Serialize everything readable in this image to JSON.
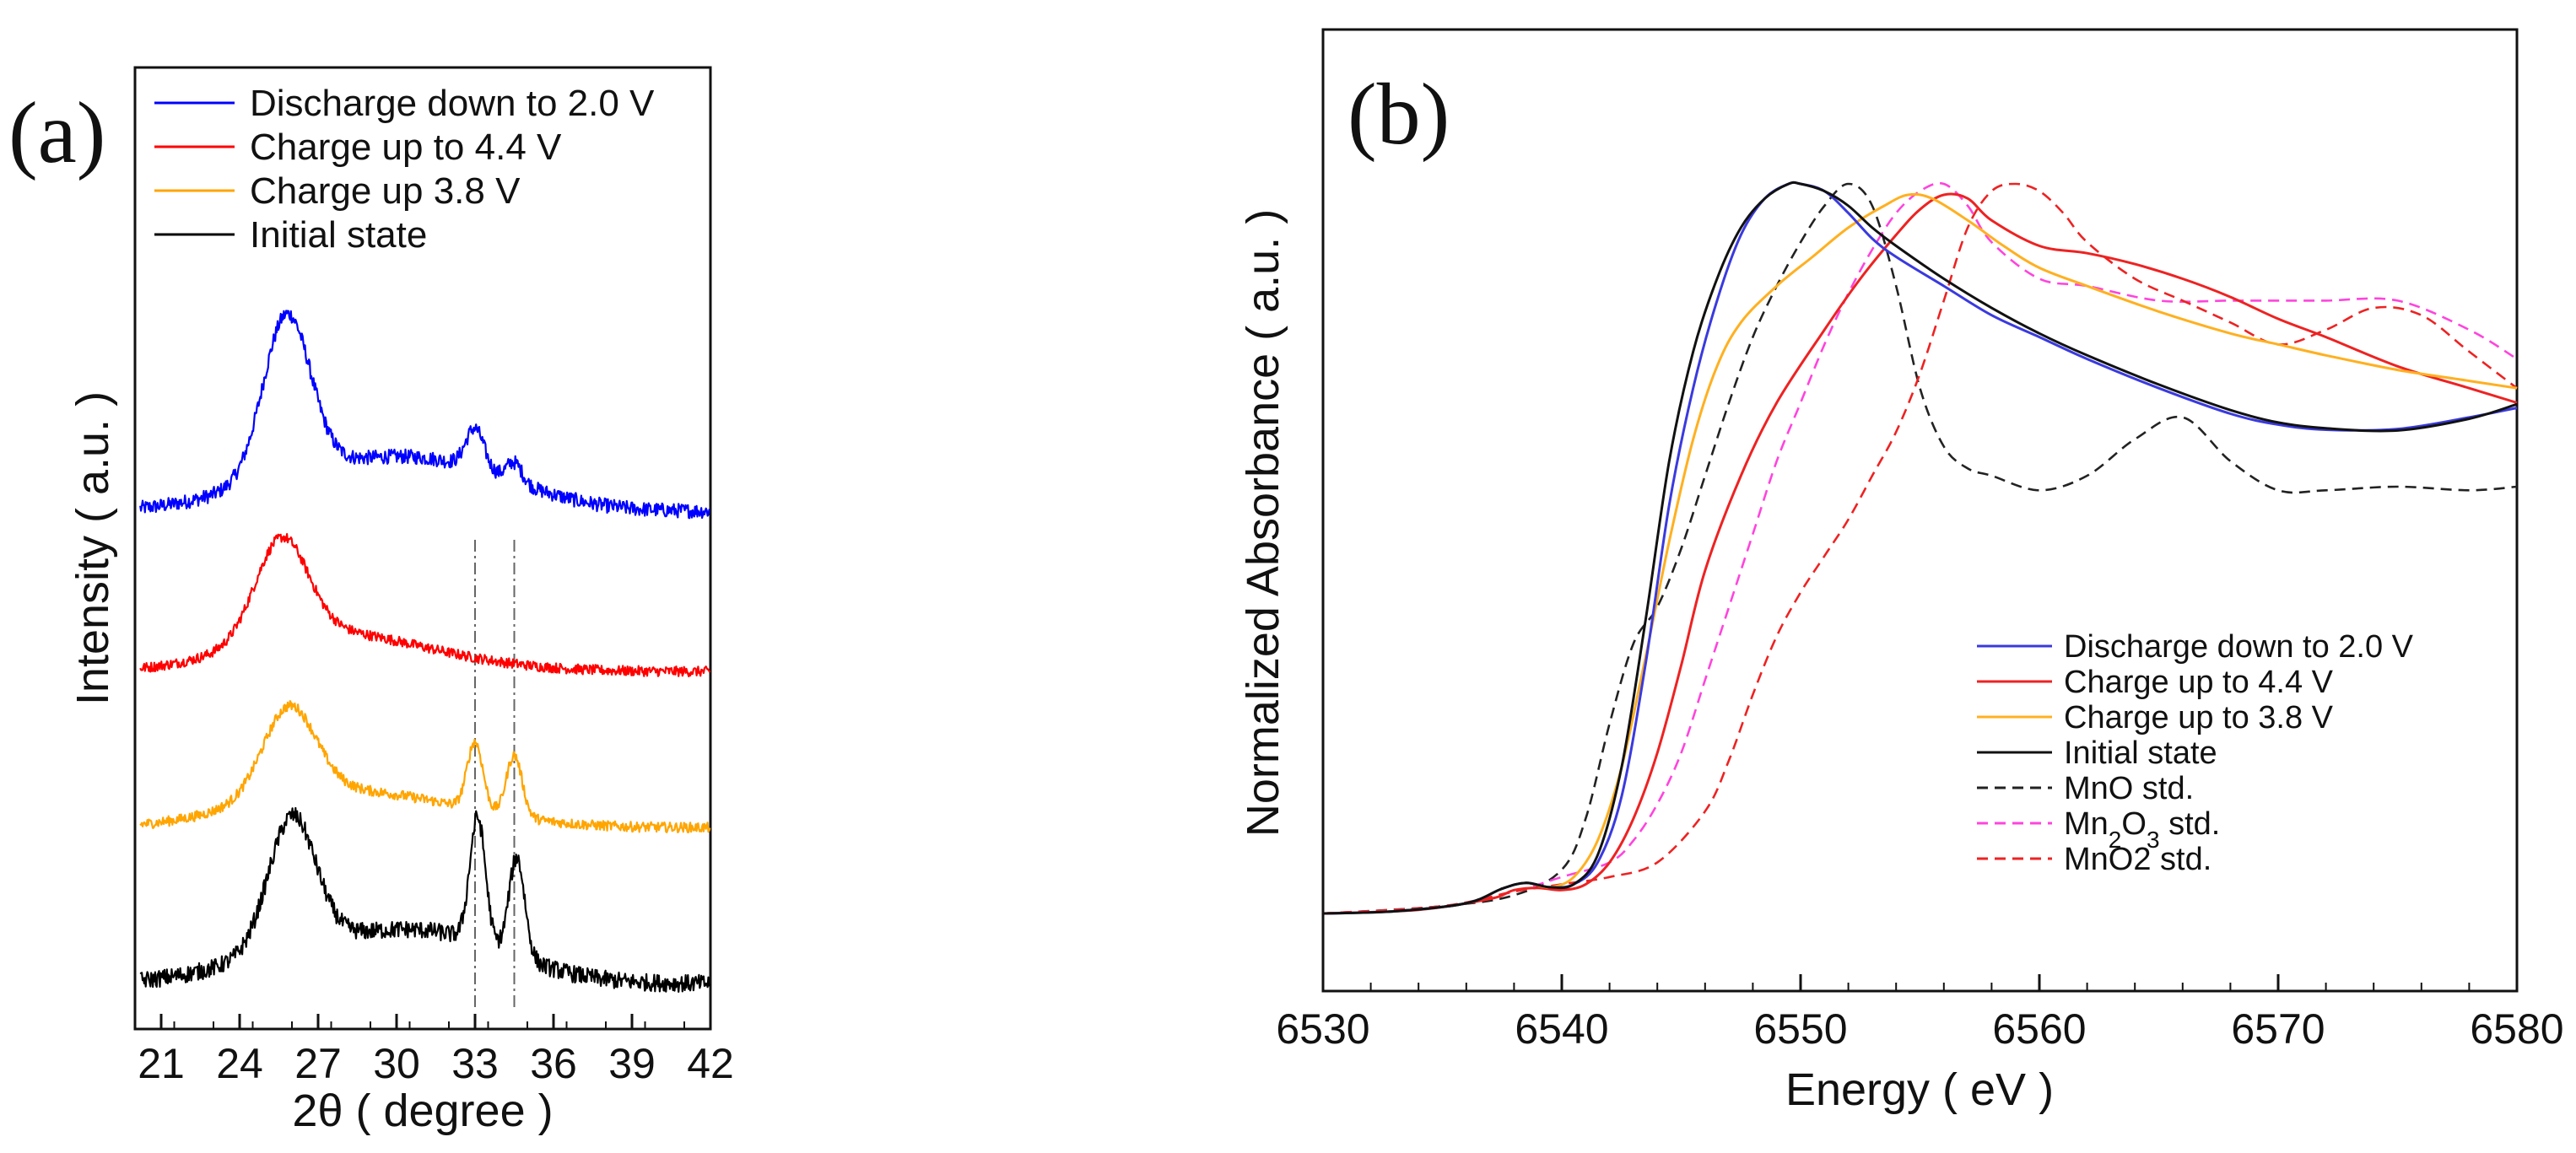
{
  "figure": {
    "panels": [
      "(a)",
      "(b)"
    ]
  },
  "chart_data": [
    {
      "type": "line",
      "panel_label": "(a)",
      "title": "",
      "xlabel": "2θ ( degree )",
      "ylabel": "Intensity ( a.u. )",
      "xlim": [
        20,
        42
      ],
      "xticks": [
        21,
        24,
        27,
        30,
        33,
        36,
        39,
        42
      ],
      "y_ticks_shown": false,
      "reference_lines_x": [
        33.0,
        34.5
      ],
      "legend_position": "top",
      "series": [
        {
          "name": "Discharge down to 2.0 V",
          "color": "#0000ff",
          "offset": 3,
          "noise": 1.0,
          "peaks": [
            [
              25.8,
              1.0,
              0.9
            ],
            [
              33.0,
              0.25,
              0.35
            ],
            [
              34.5,
              0.12,
              0.3
            ]
          ],
          "broad": [
            31.5,
            0.28,
            3.2
          ],
          "baseline": 0.02
        },
        {
          "name": "Charge up to 4.4 V",
          "color": "#ff0000",
          "offset": 2,
          "noise": 0.7,
          "peaks": [
            [
              25.6,
              0.62,
              1.0
            ]
          ],
          "broad": [
            30.0,
            0.1,
            3.5
          ],
          "baseline": 0.02
        },
        {
          "name": "Charge up 3.8 V",
          "color": "#ffa500",
          "offset": 1,
          "noise": 0.7,
          "peaks": [
            [
              25.9,
              0.55,
              1.0
            ],
            [
              33.0,
              0.42,
              0.3
            ],
            [
              34.5,
              0.38,
              0.3
            ]
          ],
          "broad": [
            31.0,
            0.12,
            3.2
          ],
          "baseline": 0.02
        },
        {
          "name": "Initial state",
          "color": "#000000",
          "offset": 0,
          "noise": 1.2,
          "peaks": [
            [
              26.0,
              0.82,
              0.9
            ],
            [
              33.1,
              0.78,
              0.3
            ],
            [
              34.6,
              0.62,
              0.3
            ]
          ],
          "broad": [
            31.5,
            0.28,
            3.0
          ],
          "baseline": 0.02
        }
      ]
    },
    {
      "type": "line",
      "panel_label": "(b)",
      "title": "",
      "xlabel": "Energy ( eV )",
      "ylabel": "Normalized Absorbance ( a.u. )",
      "xlim": [
        6530,
        6580
      ],
      "ylim": [
        0,
        1.1
      ],
      "xticks": [
        6530,
        6540,
        6550,
        6560,
        6570,
        6580
      ],
      "y_ticks_shown": false,
      "legend_position": "bottom-right",
      "series": [
        {
          "name": "Discharge down to 2.0 V",
          "color": "#3a3adf",
          "dash": false,
          "x": [
            6530,
            6533,
            6536,
            6537.5,
            6538.5,
            6539.5,
            6540.5,
            6541.5,
            6542.5,
            6543.5,
            6544.5,
            6545.5,
            6546.5,
            6547.5,
            6548.5,
            6549.5,
            6550,
            6551,
            6552,
            6553,
            6554,
            6556,
            6558,
            6560,
            6562,
            6565,
            6568,
            6570,
            6572,
            6575,
            6578,
            6580
          ],
          "y": [
            0.0,
            0.003,
            0.014,
            0.034,
            0.042,
            0.036,
            0.04,
            0.07,
            0.16,
            0.34,
            0.56,
            0.72,
            0.84,
            0.93,
            0.98,
            1.0,
            1.0,
            0.99,
            0.96,
            0.925,
            0.9,
            0.86,
            0.82,
            0.79,
            0.76,
            0.72,
            0.685,
            0.67,
            0.663,
            0.664,
            0.68,
            0.693
          ]
        },
        {
          "name": "Charge up to 4.4 V",
          "color": "#ee2222",
          "dash": false,
          "x": [
            6530,
            6534,
            6537,
            6538,
            6539,
            6540,
            6541,
            6542,
            6543,
            6544,
            6545,
            6546,
            6547.5,
            6549,
            6551,
            6552.5,
            6554,
            6555,
            6556,
            6557,
            6558,
            6560,
            6562,
            6564,
            6566,
            6568,
            6570,
            6572,
            6575,
            6578,
            6580
          ],
          "y": [
            0.0,
            0.005,
            0.02,
            0.032,
            0.035,
            0.032,
            0.04,
            0.07,
            0.13,
            0.22,
            0.34,
            0.47,
            0.6,
            0.7,
            0.8,
            0.87,
            0.93,
            0.965,
            0.985,
            0.98,
            0.95,
            0.915,
            0.905,
            0.89,
            0.87,
            0.845,
            0.815,
            0.79,
            0.75,
            0.72,
            0.7
          ]
        },
        {
          "name": "Charge up to 3.8 V",
          "color": "#ffb020",
          "dash": false,
          "x": [
            6530,
            6533,
            6536,
            6537.5,
            6538.5,
            6539.5,
            6540.5,
            6541.5,
            6542.5,
            6543.5,
            6544.5,
            6545.5,
            6546.5,
            6547.5,
            6549,
            6550.5,
            6552,
            6553.5,
            6554.5,
            6555.5,
            6557,
            6558.5,
            6560,
            6562,
            6565,
            6568,
            6570,
            6572,
            6575,
            6578,
            6580
          ],
          "y": [
            0.0,
            0.003,
            0.014,
            0.034,
            0.042,
            0.036,
            0.05,
            0.1,
            0.2,
            0.35,
            0.51,
            0.65,
            0.75,
            0.81,
            0.86,
            0.9,
            0.94,
            0.97,
            0.985,
            0.98,
            0.95,
            0.915,
            0.885,
            0.86,
            0.825,
            0.795,
            0.78,
            0.765,
            0.745,
            0.73,
            0.72
          ]
        },
        {
          "name": "Initial state",
          "color": "#111111",
          "dash": false,
          "x": [
            6530,
            6533,
            6536,
            6537.5,
            6538.5,
            6539.5,
            6540.5,
            6541.5,
            6542.5,
            6543.5,
            6544.5,
            6545.5,
            6546.5,
            6547.5,
            6548.5,
            6549.5,
            6550,
            6551,
            6552,
            6553,
            6554,
            6556,
            6558,
            6560,
            6562,
            6565,
            6568,
            6570,
            6572,
            6575,
            6578,
            6580
          ],
          "y": [
            0.0,
            0.003,
            0.014,
            0.034,
            0.042,
            0.036,
            0.04,
            0.08,
            0.2,
            0.4,
            0.62,
            0.77,
            0.87,
            0.94,
            0.98,
            1.0,
            1.0,
            0.99,
            0.97,
            0.94,
            0.915,
            0.87,
            0.83,
            0.795,
            0.765,
            0.725,
            0.69,
            0.673,
            0.665,
            0.662,
            0.678,
            0.698
          ]
        },
        {
          "name": "MnO std.",
          "color": "#222222",
          "dash": true,
          "x": [
            6530,
            6535,
            6538,
            6540,
            6541,
            6542,
            6543,
            6544,
            6545,
            6546,
            6547,
            6548,
            6549,
            6550,
            6551,
            6552,
            6553,
            6554,
            6555,
            6556,
            6557,
            6558,
            6560,
            6562,
            6564,
            6566,
            6568,
            6570,
            6572,
            6575,
            6578,
            6580
          ],
          "y": [
            0.0,
            0.01,
            0.025,
            0.06,
            0.13,
            0.26,
            0.37,
            0.42,
            0.5,
            0.6,
            0.7,
            0.79,
            0.86,
            0.92,
            0.97,
            1.0,
            0.97,
            0.86,
            0.72,
            0.64,
            0.61,
            0.6,
            0.58,
            0.6,
            0.65,
            0.68,
            0.62,
            0.58,
            0.58,
            0.585,
            0.58,
            0.585
          ]
        },
        {
          "name": "Mn2O3 std.",
          "color": "#ff44dd",
          "dash": true,
          "x": [
            6530,
            6535,
            6538,
            6540,
            6542,
            6543,
            6544,
            6545,
            6546,
            6547,
            6548,
            6549,
            6550,
            6551,
            6552,
            6553,
            6554,
            6555,
            6556,
            6557,
            6558,
            6560,
            6562,
            6565,
            6568,
            6570,
            6572,
            6575,
            6578,
            6580
          ],
          "y": [
            0.0,
            0.01,
            0.03,
            0.05,
            0.07,
            0.1,
            0.15,
            0.22,
            0.32,
            0.42,
            0.52,
            0.62,
            0.7,
            0.78,
            0.85,
            0.91,
            0.96,
            0.99,
            1.0,
            0.97,
            0.92,
            0.87,
            0.86,
            0.84,
            0.84,
            0.84,
            0.84,
            0.84,
            0.8,
            0.76
          ]
        },
        {
          "name": "MnO2 std.",
          "color": "#ee2222",
          "dash": true,
          "x": [
            6530,
            6535,
            6538,
            6540,
            6542,
            6544,
            6546,
            6547,
            6548,
            6549,
            6550,
            6551,
            6552,
            6553,
            6554,
            6555,
            6556,
            6557,
            6558,
            6559,
            6560,
            6561,
            6562,
            6564,
            6566,
            6568,
            6570,
            6572,
            6574,
            6576,
            6578,
            6580
          ],
          "y": [
            0.0,
            0.01,
            0.03,
            0.04,
            0.05,
            0.07,
            0.14,
            0.21,
            0.3,
            0.38,
            0.44,
            0.49,
            0.54,
            0.6,
            0.66,
            0.74,
            0.84,
            0.94,
            0.99,
            1.0,
            0.99,
            0.96,
            0.92,
            0.87,
            0.84,
            0.81,
            0.78,
            0.8,
            0.83,
            0.82,
            0.77,
            0.72
          ]
        }
      ]
    }
  ]
}
